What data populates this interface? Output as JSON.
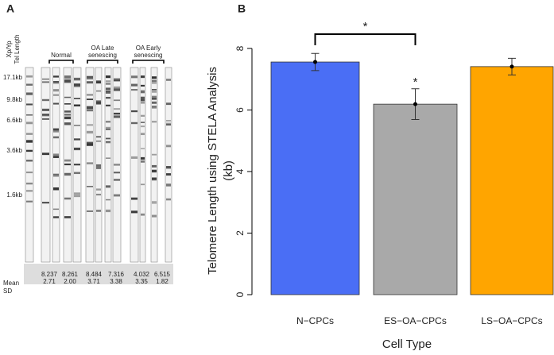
{
  "panel_a": {
    "label": "A",
    "y_label": [
      "Xp/Yp",
      "Tel Length"
    ],
    "size_markers": [
      "17.1kb",
      "9.8kb",
      "6.6kb",
      "3.6kb",
      "1.6kb"
    ],
    "groups": [
      {
        "lines": [
          "Normal"
        ]
      },
      {
        "lines": [
          "OA Late",
          "senescing"
        ]
      },
      {
        "lines": [
          "OA Early",
          "senescing"
        ]
      }
    ],
    "row_labels": [
      "Mean",
      "SD"
    ],
    "stats": [
      {
        "mean": "8.237",
        "sd": "2.71"
      },
      {
        "mean": "8.261",
        "sd": "2.00"
      },
      {
        "mean": "8.484",
        "sd": "3.71"
      },
      {
        "mean": "7.316",
        "sd": "3.38"
      },
      {
        "mean": "4.032",
        "sd": "3.35"
      },
      {
        "mean": "6.515",
        "sd": "1.82"
      }
    ]
  },
  "chart_data": {
    "type": "bar",
    "panel_label": "B",
    "categories": [
      "N−CPCs",
      "ES−OA−CPCs",
      "LS−OA−CPCs"
    ],
    "values": [
      7.56,
      6.19,
      7.41
    ],
    "errors": [
      0.28,
      0.5,
      0.27
    ],
    "colors": [
      "#4a6ef5",
      "#a9a9a9",
      "#ffa500"
    ],
    "ylim": [
      0,
      8
    ],
    "yticks": [
      0,
      2,
      4,
      6,
      8
    ],
    "y_label": [
      "Telomere Length using STELA Analysis",
      "(kb)"
    ],
    "x_label": "Cell Type",
    "annotations": [
      "*",
      "*"
    ]
  }
}
